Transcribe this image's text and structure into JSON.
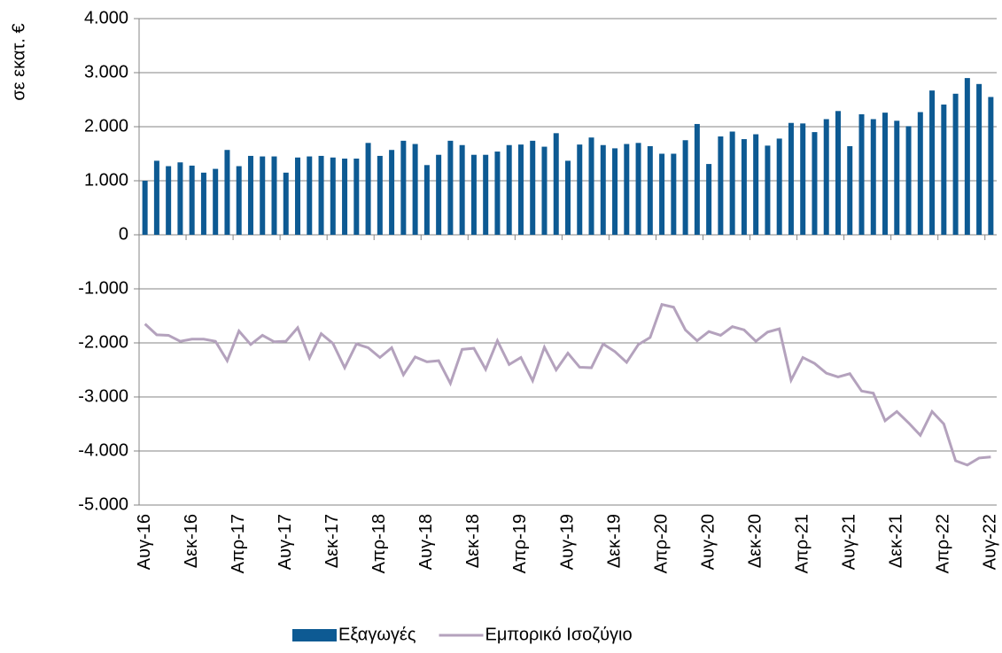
{
  "chart_data": {
    "type": "bar_line",
    "ylabel": "σε εκατ. €",
    "categories": [
      "Αυγ-16",
      null,
      null,
      null,
      "Δεκ-16",
      null,
      null,
      null,
      "Απρ-17",
      null,
      null,
      null,
      "Αυγ-17",
      null,
      null,
      null,
      "Δεκ-17",
      null,
      null,
      null,
      "Απρ-18",
      null,
      null,
      null,
      "Αυγ-18",
      null,
      null,
      null,
      "Δεκ-18",
      null,
      null,
      null,
      "Απρ-19",
      null,
      null,
      null,
      "Αυγ-19",
      null,
      null,
      null,
      "Δεκ-19",
      null,
      null,
      null,
      "Απρ-20",
      null,
      null,
      null,
      "Αυγ-20",
      null,
      null,
      null,
      "Δεκ-20",
      null,
      null,
      null,
      "Απρ-21",
      null,
      null,
      null,
      "Αυγ-21",
      null,
      null,
      null,
      "Δεκ-21",
      null,
      null,
      null,
      "Απρ-22",
      null,
      null,
      null,
      "Αυγ-22"
    ],
    "series": [
      {
        "name": "Εξαγωγές",
        "kind": "bar",
        "color": "#0d5a93",
        "values": [
          1000,
          1370,
          1270,
          1340,
          1280,
          1150,
          1220,
          1570,
          1270,
          1460,
          1450,
          1450,
          1150,
          1430,
          1450,
          1460,
          1430,
          1410,
          1410,
          1700,
          1460,
          1570,
          1740,
          1680,
          1290,
          1480,
          1740,
          1660,
          1480,
          1480,
          1540,
          1660,
          1670,
          1740,
          1630,
          1880,
          1370,
          1670,
          1800,
          1660,
          1600,
          1680,
          1700,
          1640,
          1500,
          1500,
          1750,
          2050,
          1310,
          1820,
          1910,
          1770,
          1860,
          1650,
          1780,
          2070,
          2060,
          1900,
          2140,
          2290,
          1640,
          2230,
          2140,
          2260,
          2110,
          2010,
          2270,
          2670,
          2410,
          2610,
          2900,
          2790,
          2550
        ]
      },
      {
        "name": "Εμπορικό Ισοζύγιο",
        "kind": "line",
        "color": "#b4a2bd",
        "values": [
          -1650,
          -1850,
          -1860,
          -1970,
          -1930,
          -1930,
          -1970,
          -2330,
          -1780,
          -2030,
          -1860,
          -1980,
          -1970,
          -1720,
          -2280,
          -1830,
          -2010,
          -2460,
          -2020,
          -2090,
          -2270,
          -2090,
          -2590,
          -2260,
          -2350,
          -2330,
          -2750,
          -2120,
          -2100,
          -2490,
          -1960,
          -2400,
          -2270,
          -2700,
          -2080,
          -2500,
          -2190,
          -2450,
          -2460,
          -2020,
          -2160,
          -2360,
          -2030,
          -1900,
          -1290,
          -1340,
          -1760,
          -1960,
          -1790,
          -1860,
          -1700,
          -1760,
          -1970,
          -1800,
          -1740,
          -2690,
          -2270,
          -2380,
          -2560,
          -2630,
          -2570,
          -2890,
          -2930,
          -3440,
          -3270,
          -3480,
          -3710,
          -3270,
          -3500,
          -4180,
          -4260,
          -4130,
          -4110
        ]
      }
    ],
    "ylim": [
      -5000,
      4000
    ],
    "yticks": [
      {
        "value": -5000,
        "label": "-5.000"
      },
      {
        "value": -4000,
        "label": "-4.000"
      },
      {
        "value": -3000,
        "label": "-3.000"
      },
      {
        "value": -2000,
        "label": "-2.000"
      },
      {
        "value": -1000,
        "label": "-1.000"
      },
      0,
      {
        "value": 1000,
        "label": "1.000"
      },
      {
        "value": 2000,
        "label": "2.000"
      },
      {
        "value": 3000,
        "label": "3.000"
      },
      {
        "value": 4000,
        "label": "4.000"
      }
    ],
    "grid": true,
    "legend": "bottom"
  }
}
